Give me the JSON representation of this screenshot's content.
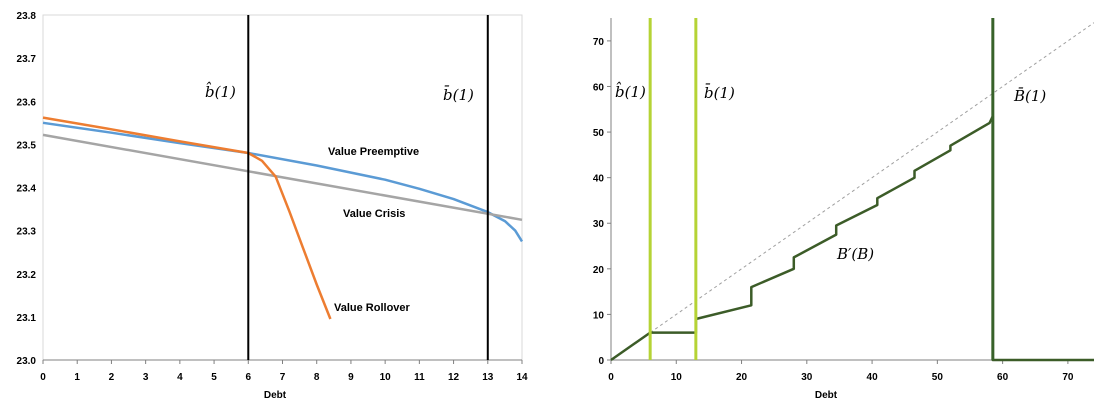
{
  "chart_data": [
    {
      "type": "line",
      "xlabel": "Debt",
      "ylabel": "",
      "xlim": [
        0,
        14
      ],
      "ylim": [
        23.0,
        23.8
      ],
      "xticks": [
        "0",
        "1",
        "2",
        "3",
        "4",
        "5",
        "6",
        "7",
        "8",
        "9",
        "10",
        "11",
        "12",
        "13",
        "14"
      ],
      "yticks": [
        "23.0",
        "23.1",
        "23.2",
        "23.3",
        "23.4",
        "23.5",
        "23.6",
        "23.7",
        "23.8"
      ],
      "vlines": [
        {
          "x": 6,
          "label": "b̂(1)"
        },
        {
          "x": 13,
          "label": "b̄(1)"
        }
      ],
      "series": [
        {
          "name": "Value Preemptive",
          "color": "#5b9bd5",
          "x": [
            0,
            2,
            4,
            6,
            8,
            10,
            11,
            12,
            13,
            13.5,
            13.8,
            14
          ],
          "y": [
            23.55,
            23.527,
            23.503,
            23.48,
            23.451,
            23.418,
            23.397,
            23.373,
            23.343,
            23.322,
            23.3,
            23.275
          ]
        },
        {
          "name": "Value Crisis",
          "color": "#a5a5a5",
          "x": [
            0,
            14
          ],
          "y": [
            23.522,
            23.325
          ]
        },
        {
          "name": "Value Rollover",
          "color": "#ed7d31",
          "x": [
            0,
            2,
            4,
            6,
            6.4,
            6.8,
            7.2,
            7.6,
            8.0,
            8.4
          ],
          "y": [
            23.562,
            23.535,
            23.507,
            23.48,
            23.462,
            23.425,
            23.345,
            23.26,
            23.175,
            23.095
          ]
        }
      ]
    },
    {
      "type": "line",
      "xlabel": "Debt",
      "ylabel": "",
      "xlim": [
        0,
        74
      ],
      "ylim": [
        0,
        75
      ],
      "xticks": [
        "0",
        "10",
        "20",
        "30",
        "40",
        "50",
        "60",
        "70"
      ],
      "yticks": [
        "0",
        "10",
        "20",
        "30",
        "40",
        "50",
        "60",
        "70"
      ],
      "vlines": [
        {
          "x": 6,
          "label": "b̂(1)",
          "color": "#b5d335"
        },
        {
          "x": 13,
          "label": "b̄(1)",
          "color": "#b5d335"
        },
        {
          "x": 58.5,
          "label": "B̄(1)",
          "color": "#38622a"
        }
      ],
      "series": [
        {
          "name": "",
          "color": "#a0a0a0",
          "dashed": true,
          "x": [
            0,
            74
          ],
          "y": [
            0,
            74
          ]
        },
        {
          "name": "B′(B)",
          "color": "#3c5c28",
          "x": [
            0,
            6,
            6,
            13,
            13,
            21.5,
            21.5,
            28,
            28,
            34.5,
            34.5,
            40.8,
            40.8,
            46.5,
            46.5,
            52,
            52,
            58,
            58.5,
            58.5,
            74
          ],
          "y": [
            0,
            6,
            6,
            6,
            9,
            12,
            16,
            20,
            22.5,
            27.5,
            29.5,
            34,
            35.5,
            40,
            41.5,
            46,
            47,
            52,
            53.5,
            0,
            0
          ]
        }
      ]
    }
  ]
}
